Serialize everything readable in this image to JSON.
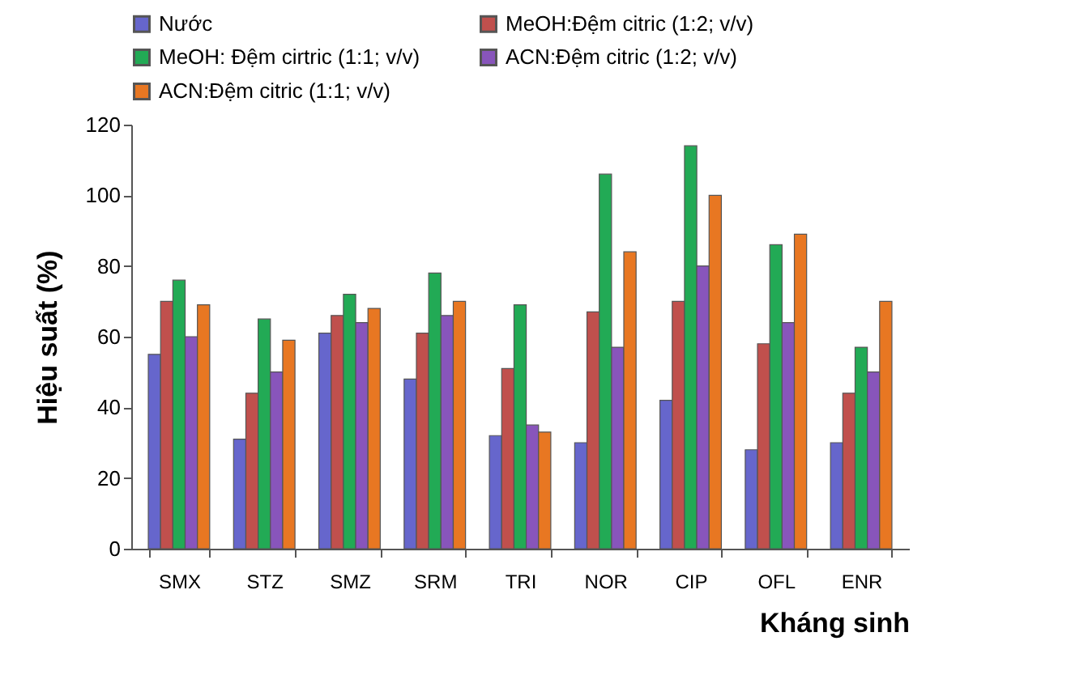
{
  "chart_data": {
    "type": "bar",
    "xlabel": "Kháng sinh",
    "ylabel": "Hiệu suất (%)",
    "categories": [
      "SMX",
      "STZ",
      "SMZ",
      "SRM",
      "TRI",
      "NOR",
      "CIP",
      "OFL",
      "ENR"
    ],
    "series": [
      {
        "name": "Nước",
        "color": "#6666cc",
        "values": [
          55,
          31,
          61,
          48,
          32,
          30,
          42,
          28,
          30
        ]
      },
      {
        "name": "MeOH:Đệm  citric (1:2; v/v)",
        "color": "#c0504d",
        "values": [
          70,
          44,
          66,
          61,
          51,
          67,
          70,
          58,
          44
        ]
      },
      {
        "name": "MeOH:  Đệm cirtric (1:1; v/v)",
        "color": "#22aa55",
        "values": [
          76,
          65,
          72,
          78,
          69,
          106,
          114,
          86,
          57
        ]
      },
      {
        "name": "ACN:Đệm  citric (1:2; v/v)",
        "color": "#8855bb",
        "values": [
          60,
          50,
          64,
          66,
          35,
          57,
          80,
          64,
          50
        ]
      },
      {
        "name": "ACN:Đệm  citric (1:1; v/v)",
        "color": "#e87722",
        "values": [
          69,
          59,
          68,
          70,
          33,
          84,
          100,
          89,
          70
        ]
      }
    ],
    "ylim": [
      0,
      120
    ],
    "yticks": [
      0,
      20,
      40,
      60,
      80,
      100,
      120
    ],
    "grid": false,
    "legend": "top"
  }
}
